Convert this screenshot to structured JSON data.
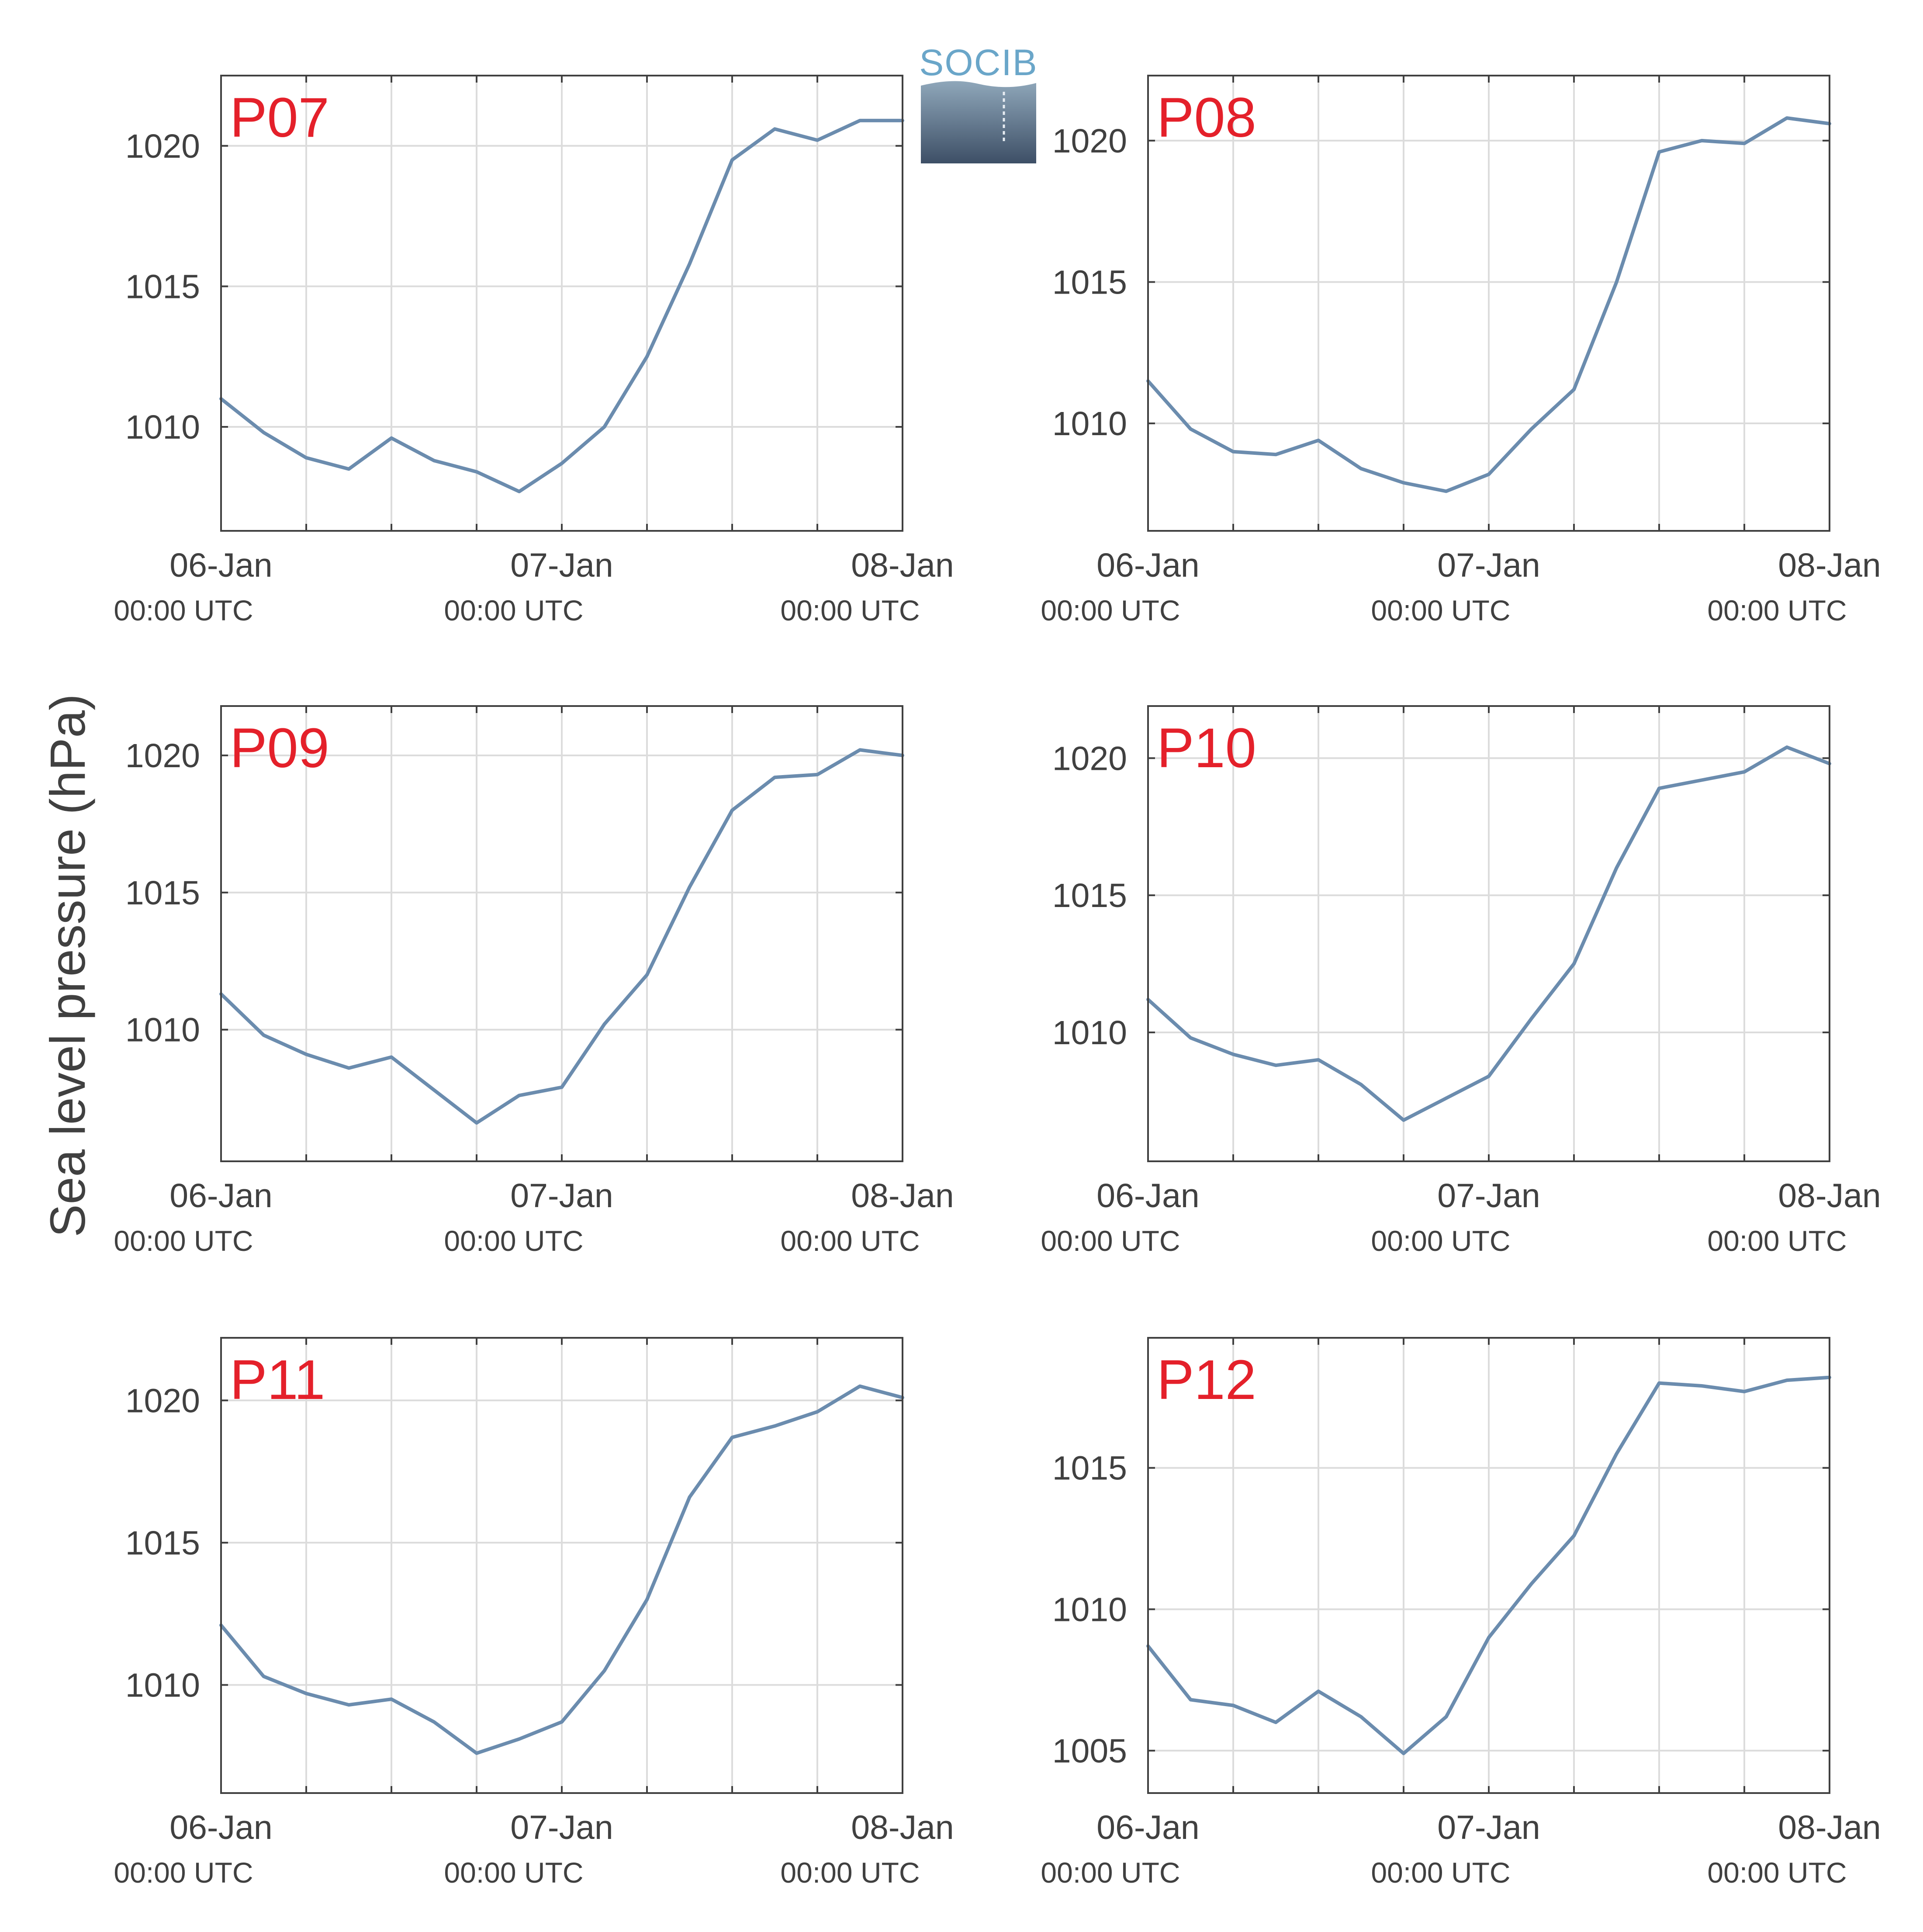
{
  "ylabel": "Sea level pressure (hPa)",
  "logo": {
    "text": "SOCIB"
  },
  "colors": {
    "line": "#6b8cae",
    "panel_label": "#e4202a",
    "axes": "#404040",
    "grid": "#dcdcdc"
  },
  "chart_data": [
    {
      "type": "line",
      "label": "P07",
      "x": [
        "06-Jan 00:00",
        "06-Jan 03:00",
        "06-Jan 06:00",
        "06-Jan 09:00",
        "06-Jan 12:00",
        "06-Jan 15:00",
        "06-Jan 18:00",
        "06-Jan 21:00",
        "07-Jan 00:00",
        "07-Jan 03:00",
        "07-Jan 06:00",
        "07-Jan 09:00",
        "07-Jan 12:00",
        "07-Jan 15:00",
        "07-Jan 18:00",
        "07-Jan 21:00",
        "08-Jan 00:00"
      ],
      "values": [
        1011.0,
        1009.8,
        1008.9,
        1008.5,
        1009.6,
        1008.8,
        1008.4,
        1007.7,
        1008.7,
        1010.0,
        1012.5,
        1015.8,
        1019.5,
        1020.6,
        1020.2,
        1020.9,
        1020.9
      ],
      "xticks": [
        {
          "day": "06-Jan",
          "time": "00:00 UTC"
        },
        {
          "day": "07-Jan",
          "time": "00:00 UTC"
        },
        {
          "day": "08-Jan",
          "time": "00:00 UTC"
        }
      ],
      "yticks": [
        1010,
        1015,
        1020
      ],
      "ylim": [
        1006.3,
        1022.5
      ]
    },
    {
      "type": "line",
      "label": "P08",
      "x": [
        "06-Jan 00:00",
        "06-Jan 03:00",
        "06-Jan 06:00",
        "06-Jan 09:00",
        "06-Jan 12:00",
        "06-Jan 15:00",
        "06-Jan 18:00",
        "06-Jan 21:00",
        "07-Jan 00:00",
        "07-Jan 03:00",
        "07-Jan 06:00",
        "07-Jan 09:00",
        "07-Jan 12:00",
        "07-Jan 15:00",
        "07-Jan 18:00",
        "07-Jan 21:00",
        "08-Jan 00:00"
      ],
      "values": [
        1011.5,
        1009.8,
        1009.0,
        1008.9,
        1009.4,
        1008.4,
        1007.9,
        1007.6,
        1008.2,
        1009.8,
        1011.2,
        1015.0,
        1019.6,
        1020.0,
        1019.9,
        1020.8,
        1020.6
      ],
      "xticks": [
        {
          "day": "06-Jan",
          "time": "00:00 UTC"
        },
        {
          "day": "07-Jan",
          "time": "00:00 UTC"
        },
        {
          "day": "08-Jan",
          "time": "00:00 UTC"
        }
      ],
      "yticks": [
        1010,
        1015,
        1020
      ],
      "ylim": [
        1006.2,
        1022.3
      ]
    },
    {
      "type": "line",
      "label": "P09",
      "x": [
        "06-Jan 00:00",
        "06-Jan 03:00",
        "06-Jan 06:00",
        "06-Jan 09:00",
        "06-Jan 12:00",
        "06-Jan 15:00",
        "06-Jan 18:00",
        "06-Jan 21:00",
        "07-Jan 00:00",
        "07-Jan 03:00",
        "07-Jan 06:00",
        "07-Jan 09:00",
        "07-Jan 12:00",
        "07-Jan 15:00",
        "07-Jan 18:00",
        "07-Jan 21:00",
        "08-Jan 00:00"
      ],
      "values": [
        1011.3,
        1009.8,
        1009.1,
        1008.6,
        1009.0,
        1007.8,
        1006.6,
        1007.6,
        1007.9,
        1010.2,
        1012.0,
        1015.2,
        1018.0,
        1019.2,
        1019.3,
        1020.2,
        1020.0
      ],
      "xticks": [
        {
          "day": "06-Jan",
          "time": "00:00 UTC"
        },
        {
          "day": "07-Jan",
          "time": "00:00 UTC"
        },
        {
          "day": "08-Jan",
          "time": "00:00 UTC"
        }
      ],
      "yticks": [
        1010,
        1015,
        1020
      ],
      "ylim": [
        1005.2,
        1021.8
      ]
    },
    {
      "type": "line",
      "label": "P10",
      "x": [
        "06-Jan 00:00",
        "06-Jan 03:00",
        "06-Jan 06:00",
        "06-Jan 09:00",
        "06-Jan 12:00",
        "06-Jan 15:00",
        "06-Jan 18:00",
        "06-Jan 21:00",
        "07-Jan 00:00",
        "07-Jan 03:00",
        "07-Jan 06:00",
        "07-Jan 09:00",
        "07-Jan 12:00",
        "07-Jan 15:00",
        "07-Jan 18:00",
        "07-Jan 21:00",
        "08-Jan 00:00"
      ],
      "values": [
        1011.2,
        1009.8,
        1009.2,
        1008.8,
        1009.0,
        1008.1,
        1006.8,
        1007.6,
        1008.4,
        1010.5,
        1012.5,
        1016.0,
        1018.9,
        1019.2,
        1019.5,
        1020.4,
        1019.8
      ],
      "xticks": [
        {
          "day": "06-Jan",
          "time": "00:00 UTC"
        },
        {
          "day": "07-Jan",
          "time": "00:00 UTC"
        },
        {
          "day": "08-Jan",
          "time": "00:00 UTC"
        }
      ],
      "yticks": [
        1010,
        1015,
        1020
      ],
      "ylim": [
        1005.3,
        1021.9
      ]
    },
    {
      "type": "line",
      "label": "P11",
      "x": [
        "06-Jan 00:00",
        "06-Jan 03:00",
        "06-Jan 06:00",
        "06-Jan 09:00",
        "06-Jan 12:00",
        "06-Jan 15:00",
        "06-Jan 18:00",
        "06-Jan 21:00",
        "07-Jan 00:00",
        "07-Jan 03:00",
        "07-Jan 06:00",
        "07-Jan 09:00",
        "07-Jan 12:00",
        "07-Jan 15:00",
        "07-Jan 18:00",
        "07-Jan 21:00",
        "08-Jan 00:00"
      ],
      "values": [
        1012.1,
        1010.3,
        1009.7,
        1009.3,
        1009.5,
        1008.7,
        1007.6,
        1008.1,
        1008.7,
        1010.5,
        1013.0,
        1016.6,
        1018.7,
        1019.1,
        1019.6,
        1020.5,
        1020.1
      ],
      "xticks": [
        {
          "day": "06-Jan",
          "time": "00:00 UTC"
        },
        {
          "day": "07-Jan",
          "time": "00:00 UTC"
        },
        {
          "day": "08-Jan",
          "time": "00:00 UTC"
        }
      ],
      "yticks": [
        1010,
        1015,
        1020
      ],
      "ylim": [
        1006.2,
        1022.2
      ]
    },
    {
      "type": "line",
      "label": "P12",
      "x": [
        "06-Jan 00:00",
        "06-Jan 03:00",
        "06-Jan 06:00",
        "06-Jan 09:00",
        "06-Jan 12:00",
        "06-Jan 15:00",
        "06-Jan 18:00",
        "06-Jan 21:00",
        "07-Jan 00:00",
        "07-Jan 03:00",
        "07-Jan 06:00",
        "07-Jan 09:00",
        "07-Jan 12:00",
        "07-Jan 15:00",
        "07-Jan 18:00",
        "07-Jan 21:00",
        "08-Jan 00:00"
      ],
      "values": [
        1008.7,
        1006.8,
        1006.6,
        1006.0,
        1007.1,
        1006.2,
        1004.9,
        1006.2,
        1009.0,
        1010.9,
        1012.6,
        1015.5,
        1018.0,
        1017.9,
        1017.7,
        1018.1,
        1018.2
      ],
      "xticks": [
        {
          "day": "06-Jan",
          "time": "00:00 UTC"
        },
        {
          "day": "07-Jan",
          "time": "00:00 UTC"
        },
        {
          "day": "08-Jan",
          "time": "00:00 UTC"
        }
      ],
      "yticks": [
        1005,
        1010,
        1015
      ],
      "ylim": [
        1003.5,
        1019.6
      ]
    }
  ]
}
